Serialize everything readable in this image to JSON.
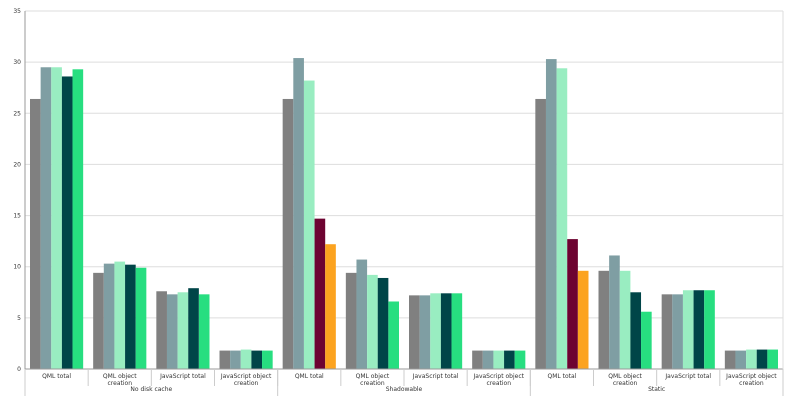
{
  "chart_data": {
    "type": "bar",
    "ylim": [
      0,
      35
    ],
    "yticks": [
      "0",
      "5",
      "10",
      "15",
      "20",
      "25",
      "30",
      "35"
    ],
    "grid": true,
    "colors": {
      "gray": "#808080",
      "slate": "#7f9ea3",
      "mint": "#99edc1",
      "maroon": "#6d0331",
      "dark_teal": "#004548",
      "green": "#27de80",
      "orange": "#fca31f"
    },
    "groups": [
      {
        "label": "No disk cache",
        "categories": [
          {
            "label": "QML total",
            "values": [
              26.4,
              29.5,
              29.5,
              28.6,
              29.3
            ],
            "colors": [
              "gray",
              "slate",
              "mint",
              "dark_teal",
              "green"
            ]
          },
          {
            "label": "QML object creation",
            "values": [
              9.4,
              10.3,
              10.5,
              10.2,
              9.9
            ],
            "colors": [
              "gray",
              "slate",
              "mint",
              "dark_teal",
              "green"
            ]
          },
          {
            "label": "JavaScript total",
            "values": [
              7.6,
              7.3,
              7.5,
              7.9,
              7.3
            ],
            "colors": [
              "gray",
              "slate",
              "mint",
              "dark_teal",
              "green"
            ]
          },
          {
            "label": "JavaScript object creation",
            "values": [
              1.8,
              1.8,
              1.9,
              1.8,
              1.8
            ],
            "colors": [
              "gray",
              "slate",
              "mint",
              "dark_teal",
              "green"
            ]
          }
        ]
      },
      {
        "label": "Shadowable",
        "categories": [
          {
            "label": "QML total",
            "values": [
              26.4,
              30.4,
              28.2,
              14.7,
              12.2
            ],
            "colors": [
              "gray",
              "slate",
              "mint",
              "maroon",
              "orange"
            ]
          },
          {
            "label": "QML object creation",
            "values": [
              9.4,
              10.7,
              9.2,
              8.9,
              6.6
            ],
            "colors": [
              "gray",
              "slate",
              "mint",
              "dark_teal",
              "green"
            ]
          },
          {
            "label": "JavaScript total",
            "values": [
              7.2,
              7.2,
              7.4,
              7.4,
              7.4
            ],
            "colors": [
              "gray",
              "slate",
              "mint",
              "dark_teal",
              "green"
            ]
          },
          {
            "label": "JavaScript object creation",
            "values": [
              1.8,
              1.8,
              1.8,
              1.8,
              1.8
            ],
            "colors": [
              "gray",
              "slate",
              "mint",
              "dark_teal",
              "green"
            ]
          }
        ]
      },
      {
        "label": "Static",
        "categories": [
          {
            "label": "QML total",
            "values": [
              26.4,
              30.3,
              29.4,
              12.7,
              9.6
            ],
            "colors": [
              "gray",
              "slate",
              "mint",
              "maroon",
              "orange"
            ]
          },
          {
            "label": "QML object creation",
            "values": [
              9.6,
              11.1,
              9.6,
              7.5,
              5.6
            ],
            "colors": [
              "gray",
              "slate",
              "mint",
              "dark_teal",
              "green"
            ]
          },
          {
            "label": "JavaScript total",
            "values": [
              7.3,
              7.3,
              7.7,
              7.7,
              7.7
            ],
            "colors": [
              "gray",
              "slate",
              "mint",
              "dark_teal",
              "green"
            ]
          },
          {
            "label": "JavaScript object creation",
            "values": [
              1.8,
              1.8,
              1.9,
              1.9,
              1.9
            ],
            "colors": [
              "gray",
              "slate",
              "mint",
              "dark_teal",
              "green"
            ]
          }
        ]
      }
    ]
  }
}
